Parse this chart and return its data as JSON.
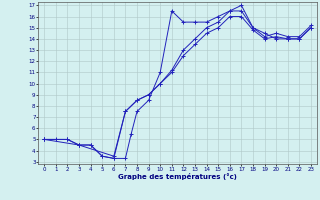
{
  "xlabel": "Graphe des températures (°c)",
  "background_color": "#d4f0f0",
  "grid_color": "#b0c8c8",
  "line_color": "#2222bb",
  "x_ticks": [
    0,
    1,
    2,
    3,
    4,
    5,
    6,
    7,
    8,
    9,
    10,
    11,
    12,
    13,
    14,
    15,
    16,
    17,
    18,
    19,
    20,
    21,
    22,
    23
  ],
  "y_ticks": [
    3,
    4,
    5,
    6,
    7,
    8,
    9,
    10,
    11,
    12,
    13,
    14,
    15,
    16,
    17
  ],
  "ylim": [
    3,
    17
  ],
  "xlim": [
    0,
    23
  ],
  "line1_x": [
    0,
    1,
    2,
    3,
    4,
    5,
    6,
    7,
    7.5,
    8,
    9,
    10,
    11,
    12,
    13,
    14,
    15,
    16,
    17,
    18,
    19,
    20,
    21,
    22,
    23
  ],
  "line1_y": [
    5,
    5,
    5,
    4.5,
    4.5,
    3.5,
    3.3,
    3.3,
    5.5,
    7.5,
    8.5,
    11,
    16.5,
    15.5,
    15.5,
    15.5,
    16,
    16.5,
    17,
    15,
    14.5,
    14,
    14,
    14,
    15
  ],
  "line2_x": [
    0,
    2,
    3,
    4,
    5,
    6,
    7,
    8,
    9,
    10,
    11,
    12,
    13,
    14,
    15,
    16,
    17,
    18,
    19,
    20,
    21,
    22,
    23
  ],
  "line2_y": [
    5,
    5,
    4.5,
    4.5,
    3.5,
    3.3,
    7.5,
    8.5,
    9,
    10,
    11.2,
    13,
    14,
    15,
    15.5,
    16.5,
    16.5,
    15,
    14.2,
    14.5,
    14.2,
    14.2,
    15.2
  ],
  "line3_x": [
    0,
    3,
    6,
    7,
    8,
    9,
    10,
    11,
    12,
    13,
    14,
    15,
    16,
    17,
    18,
    19,
    20,
    21,
    22,
    23
  ],
  "line3_y": [
    5,
    4.5,
    3.5,
    7.5,
    8.5,
    9,
    10,
    11.0,
    12.5,
    13.5,
    14.5,
    15,
    16,
    16,
    14.8,
    14,
    14.2,
    14,
    14,
    15
  ]
}
